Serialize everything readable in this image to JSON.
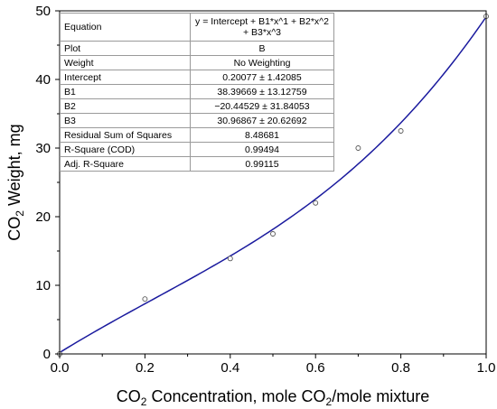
{
  "chart_data": {
    "type": "scatter",
    "x": [
      0.0,
      0.2,
      0.4,
      0.5,
      0.6,
      0.7,
      0.8,
      1.0
    ],
    "y": [
      0.0,
      8.0,
      13.9,
      17.5,
      22.0,
      30.0,
      32.5,
      49.2
    ],
    "fit": {
      "intercept": 0.20077,
      "b1": 38.39669,
      "b2": -20.44529,
      "b3": 30.96867,
      "color": "#1a1a9e"
    },
    "xlim": [
      0,
      1
    ],
    "ylim": [
      0,
      50
    ],
    "xticks": [
      "0.0",
      "0.2",
      "0.4",
      "0.6",
      "0.8",
      "1.0"
    ],
    "yticks": [
      "0",
      "10",
      "20",
      "30",
      "40",
      "50"
    ],
    "xlabel": {
      "a": "CO",
      "sub1": "2",
      "b": " Concentration, mole CO",
      "sub2": "2",
      "c": "/mole mixture"
    },
    "ylabel": {
      "a": "CO",
      "sub": "2",
      "b": " Weight, mg"
    },
    "grid": false
  },
  "table": {
    "rows": [
      {
        "key": "Equation",
        "value": "y = Intercept + B1*x^1 + B2*x^2",
        "value2": "+ B3*x^3"
      },
      {
        "key": "Plot",
        "value": "B"
      },
      {
        "key": "Weight",
        "value": "No Weighting"
      },
      {
        "key": "Intercept",
        "value": "0.20077 ± 1.42085"
      },
      {
        "key": "B1",
        "value": "38.39669 ± 13.12759"
      },
      {
        "key": "B2",
        "value": "−20.44529 ± 31.84053"
      },
      {
        "key": "B3",
        "value": "30.96867 ± 20.62692"
      },
      {
        "key": "Residual Sum of Squares",
        "value": "8.48681"
      },
      {
        "key": "R-Square (COD)",
        "value": "0.99494"
      },
      {
        "key": "Adj. R-Square",
        "value": "0.99115"
      }
    ]
  }
}
